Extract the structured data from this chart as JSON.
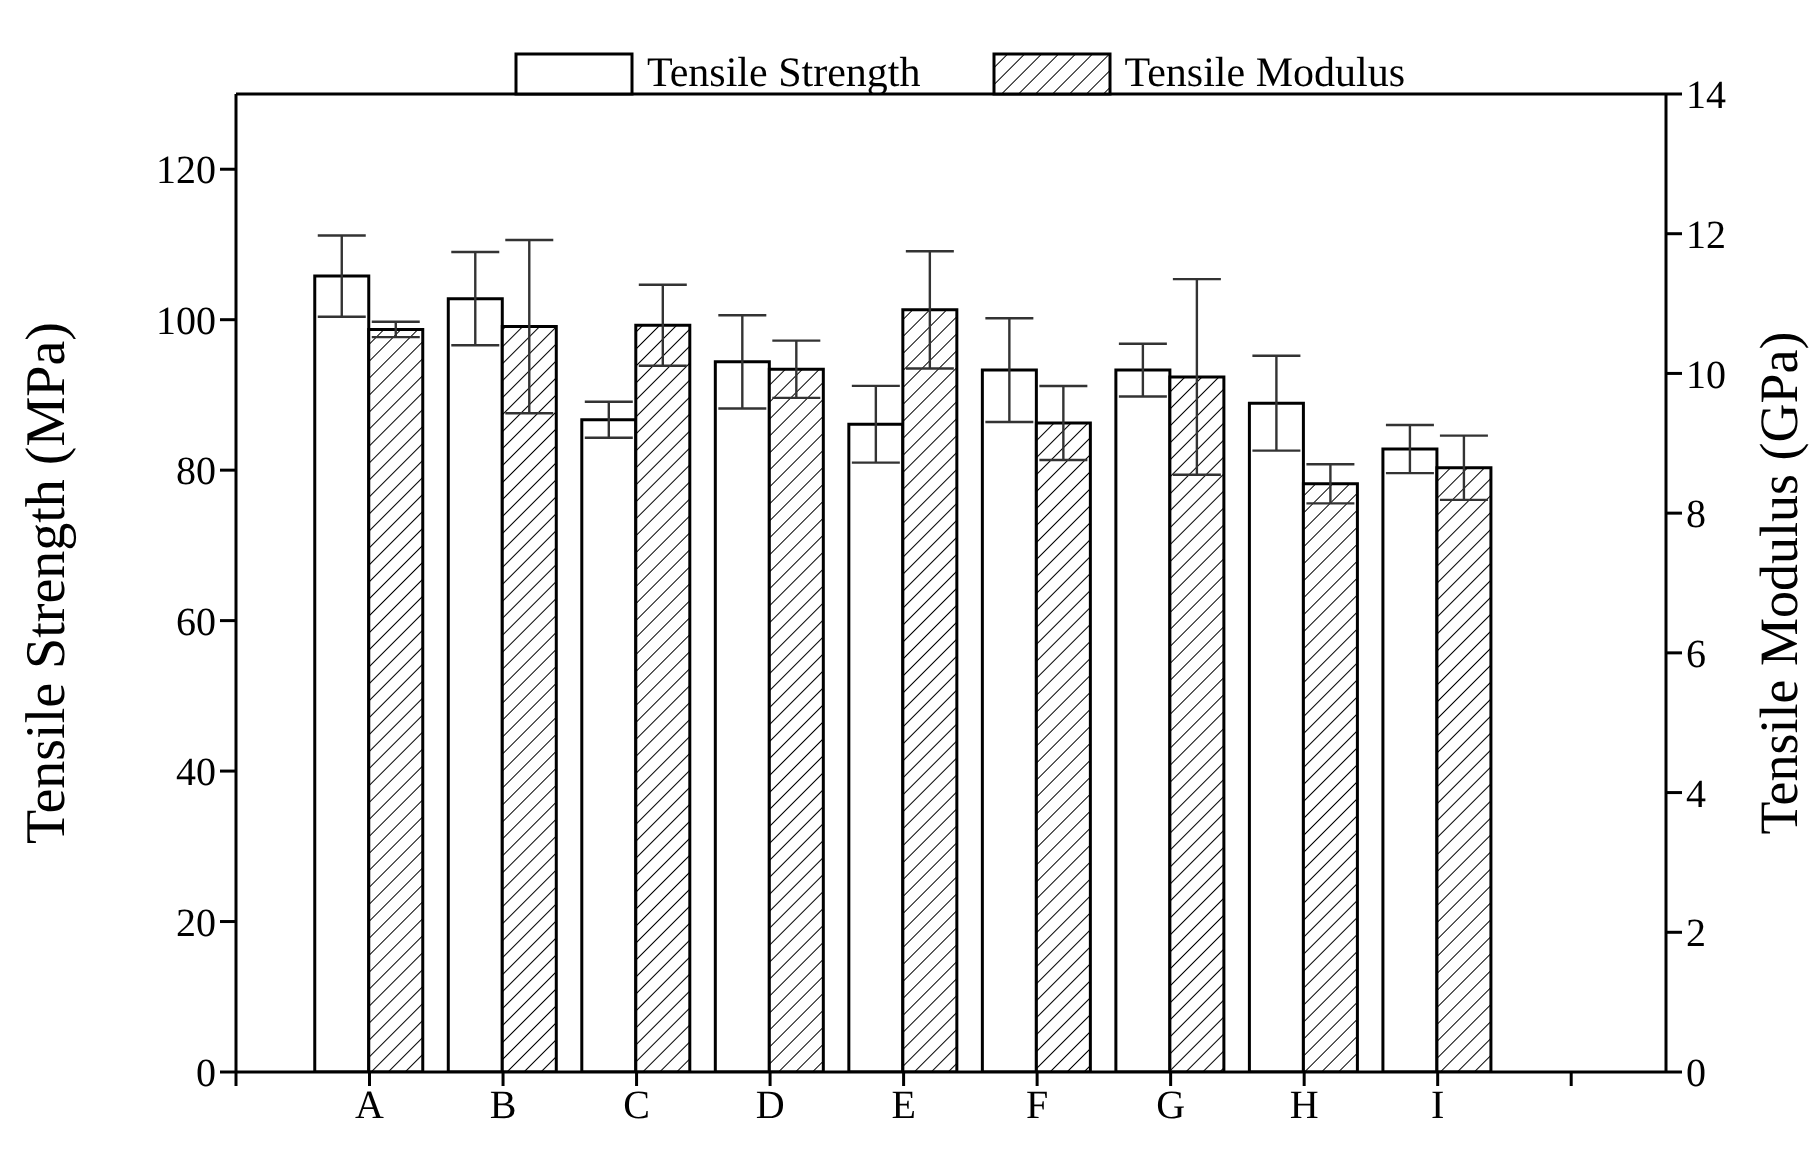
{
  "chart_data": {
    "type": "bar",
    "ylabel": "Tensile Strength (MPa)",
    "y2label": "Tensile Modulus (GPa)",
    "categories": [
      "A",
      "B",
      "C",
      "D",
      "E",
      "F",
      "G",
      "H",
      "I"
    ],
    "series": [
      {
        "name": "Tensile Strength",
        "color": "#ffffff",
        "values": [
          105.8,
          102.8,
          86.7,
          94.4,
          86.1,
          93.3,
          93.3,
          88.9,
          82.8
        ],
        "errors": [
          5.4,
          6.2,
          2.4,
          6.2,
          5.1,
          6.9,
          3.5,
          6.3,
          3.2
        ]
      },
      {
        "name": "Tensile Modulus",
        "color": "#000000",
        "axis": "y2",
        "values": [
          10.63,
          10.67,
          10.69,
          10.06,
          10.91,
          9.29,
          9.95,
          8.42,
          8.65
        ],
        "errors": [
          0.11,
          1.24,
          0.58,
          0.41,
          0.84,
          0.53,
          1.4,
          0.28,
          0.46
        ]
      }
    ],
    "ylim": [
      0,
      130
    ],
    "yticks": [
      0,
      20,
      40,
      60,
      80,
      100,
      120
    ],
    "y2lim": [
      0,
      14
    ],
    "y2ticks": [
      0,
      2,
      4,
      6,
      8,
      10,
      12,
      14
    ],
    "legend": "top",
    "grid": false
  }
}
